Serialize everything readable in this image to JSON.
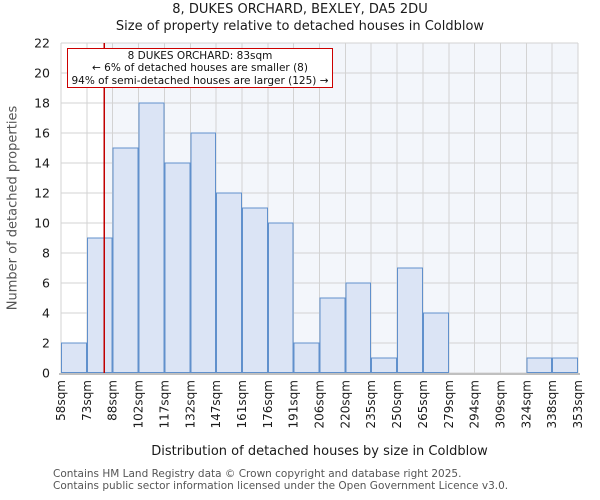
{
  "header": {
    "title": "8, DUKES ORCHARD, BEXLEY, DA5 2DU",
    "subtitle": "Size of property relative to detached houses in Coldblow"
  },
  "annotation": {
    "line1": "8 DUKES ORCHARD: 83sqm",
    "line2": "← 6% of detached houses are smaller (8)",
    "line3": "94% of semi-detached houses are larger (125) →"
  },
  "footer": {
    "line1": "Contains HM Land Registry data © Crown copyright and database right 2025.",
    "line2": "Contains public sector information licensed under the Open Government Licence v3.0."
  },
  "chart_data": {
    "type": "bar",
    "title": "8, DUKES ORCHARD, BEXLEY, DA5 2DU",
    "subtitle": "Size of property relative to detached houses in Coldblow",
    "xlabel": "Distribution of detached houses by size in Coldblow",
    "ylabel": "Number of detached properties",
    "bin_edges_sqm": [
      58,
      73,
      88,
      102,
      117,
      132,
      147,
      161,
      176,
      191,
      206,
      220,
      235,
      250,
      265,
      279,
      294,
      309,
      324,
      338,
      353
    ],
    "x_tick_labels": [
      "58sqm",
      "73sqm",
      "88sqm",
      "102sqm",
      "117sqm",
      "132sqm",
      "147sqm",
      "161sqm",
      "176sqm",
      "191sqm",
      "206sqm",
      "220sqm",
      "235sqm",
      "250sqm",
      "265sqm",
      "279sqm",
      "294sqm",
      "309sqm",
      "324sqm",
      "338sqm",
      "353sqm"
    ],
    "counts": [
      2,
      9,
      15,
      18,
      14,
      16,
      12,
      11,
      10,
      2,
      5,
      6,
      1,
      7,
      4,
      0,
      0,
      0,
      1,
      1
    ],
    "y_ticks": [
      0,
      2,
      4,
      6,
      8,
      10,
      12,
      14,
      16,
      18,
      20,
      22
    ],
    "ylim": [
      0,
      22
    ],
    "marker_value_sqm": 83,
    "grid": true,
    "legend": "none",
    "colors": {
      "bar_fill": "#dbe4f5",
      "bar_stroke": "#6090cc",
      "marker_line": "#c00000",
      "annotation_border": "#cc0000",
      "larger_region_tint": "#f3f6fb",
      "gridline": "#d3d3d3",
      "axis_line": "#c0c0c0"
    }
  }
}
